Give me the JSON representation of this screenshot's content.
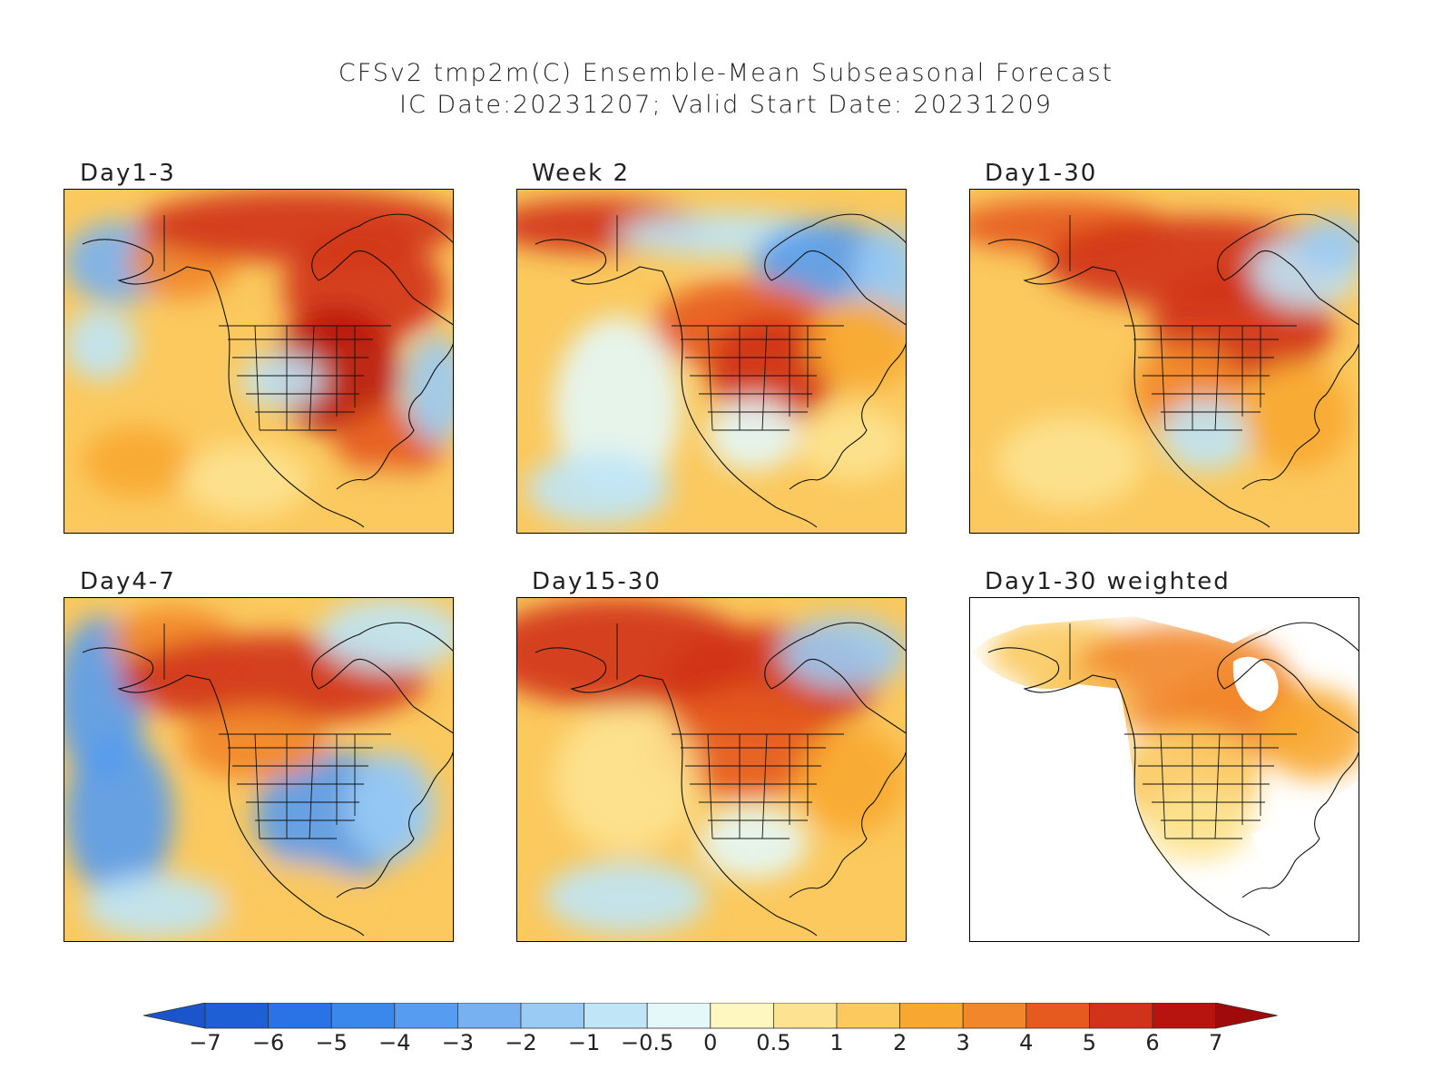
{
  "title_line1": "CFSv2 tmp2m(C) Ensemble-Mean Subseasonal Forecast",
  "title_line2": "IC Date:20231207; Valid Start Date: 20231209",
  "panels": [
    {
      "label": "Day1-3"
    },
    {
      "label": "Week 2"
    },
    {
      "label": "Day1-30"
    },
    {
      "label": "Day4-7"
    },
    {
      "label": "Day15-30"
    },
    {
      "label": "Day1-30 weighted"
    }
  ],
  "colorbar": {
    "labels": [
      "-7",
      "-6",
      "-5",
      "-4",
      "-3",
      "-2",
      "-1",
      "-0.5",
      "0",
      "0.5",
      "1",
      "2",
      "3",
      "4",
      "5",
      "6",
      "7"
    ],
    "colors": [
      "#1f5fd6",
      "#2a73e6",
      "#3b88ec",
      "#569cf0",
      "#77b1f2",
      "#9acbf5",
      "#bfe5f7",
      "#e4f8fa",
      "#fff7bf",
      "#fde391",
      "#fbc95e",
      "#f8a830",
      "#f2862a",
      "#e65a1f",
      "#d0321a",
      "#b8140f"
    ],
    "left_arrow_color": "#1a55cc",
    "right_arrow_color": "#a00a0a"
  },
  "accent_warm": "#d0321a",
  "accent_cool": "#3b88ec"
}
